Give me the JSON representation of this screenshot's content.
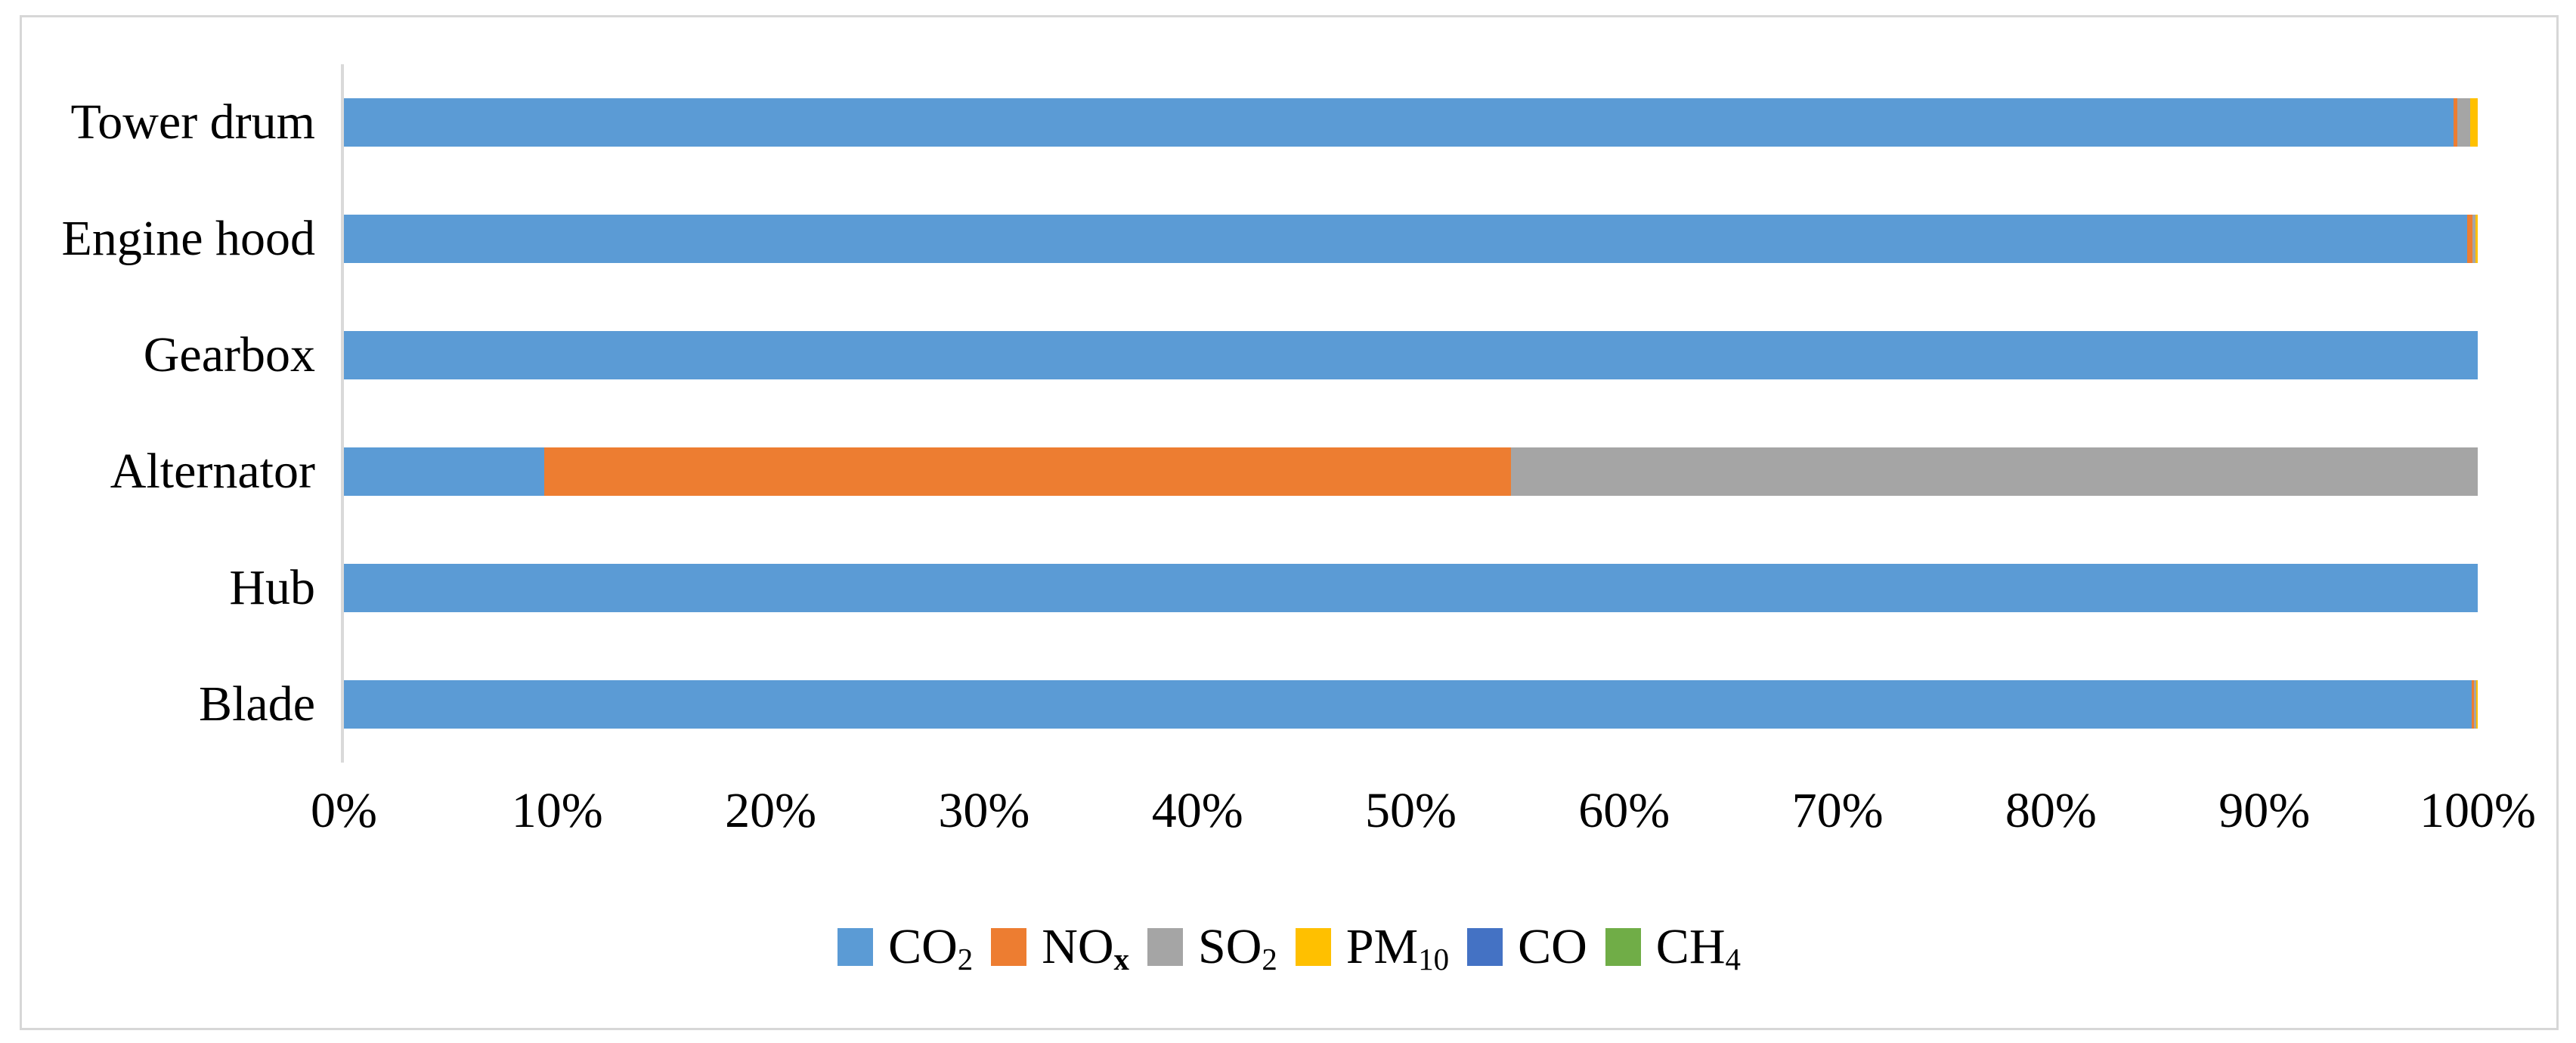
{
  "chart_data": {
    "type": "bar",
    "variant": "horizontal-100pct-stacked",
    "title": "",
    "xlabel": "",
    "ylabel": "",
    "xlim": [
      0,
      100
    ],
    "grid": false,
    "legend_position": "bottom-center",
    "categories": [
      "Tower drum",
      "Engine hood",
      "Gearbox",
      "Alternator",
      "Hub",
      "Blade"
    ],
    "x_ticks": [
      "0%",
      "10%",
      "20%",
      "30%",
      "40%",
      "50%",
      "60%",
      "70%",
      "80%",
      "90%",
      "100%"
    ],
    "x_tick_values": [
      0,
      10,
      20,
      30,
      40,
      50,
      60,
      70,
      80,
      90,
      100
    ],
    "series": [
      {
        "name": "CO2",
        "label_base": "CO",
        "label_sub": "2",
        "sub_bold": false,
        "color": "#5B9BD5",
        "values": [
          98.85,
          99.5,
          100,
          9.4,
          100,
          99.7
        ]
      },
      {
        "name": "NOx",
        "label_base": "NO",
        "label_sub": "x",
        "sub_bold": true,
        "color": "#ED7D31",
        "values": [
          0.2,
          0.25,
          0,
          45.3,
          0,
          0.13
        ]
      },
      {
        "name": "SO2",
        "label_base": "SO",
        "label_sub": "2",
        "sub_bold": false,
        "color": "#A5A5A5",
        "values": [
          0.6,
          0.15,
          0,
          45.3,
          0,
          0.1
        ]
      },
      {
        "name": "PM10",
        "label_base": "PM",
        "label_sub": "10",
        "sub_bold": false,
        "color": "#FFC000",
        "values": [
          0.35,
          0.1,
          0,
          0,
          0,
          0.07
        ]
      },
      {
        "name": "CO",
        "label_base": "CO",
        "label_sub": "",
        "sub_bold": false,
        "color": "#4472C4",
        "values": [
          0,
          0,
          0,
          0,
          0,
          0
        ]
      },
      {
        "name": "CH4",
        "label_base": "CH",
        "label_sub": "4",
        "sub_bold": false,
        "color": "#70AD47",
        "values": [
          0,
          0,
          0,
          0,
          0,
          0
        ]
      }
    ],
    "colors": {
      "axis_line": "#d9d9d9",
      "frame_border": "#d7d7d7",
      "background": "#ffffff",
      "text": "#000000"
    }
  }
}
